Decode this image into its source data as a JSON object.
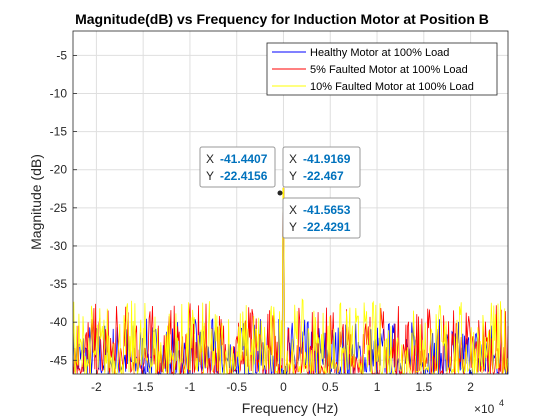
{
  "chart_data": {
    "type": "line",
    "title": "Magnitude(dB) vs Frequency for Induction Motor at Position B",
    "xlabel": "Frequency (Hz)",
    "ylabel": "Magnitude (dB)",
    "x_exponent_label": "×10",
    "x_exponent_power": "4",
    "xlim": [
      -22500,
      24000
    ],
    "ylim": [
      -46.8,
      -1.8
    ],
    "xticks": [
      -20000,
      -15000,
      -10000,
      -5000,
      0,
      5000,
      10000,
      15000,
      20000
    ],
    "xtick_labels": [
      "-2",
      "-1.5",
      "-1",
      "-0.5",
      "0",
      "0.5",
      "1",
      "1.5",
      "2"
    ],
    "yticks": [
      -45,
      -40,
      -35,
      -30,
      -25,
      -20,
      -15,
      -10,
      -5
    ],
    "ytick_labels": [
      "-45",
      "-40",
      "-35",
      "-30",
      "-25",
      "-20",
      "-15",
      "-10",
      "-5"
    ],
    "grid": true,
    "legend_position": "top-right",
    "series": [
      {
        "name": "Healthy Motor at 100% Load",
        "color": "#0000ff",
        "peak_x": -41.9169,
        "peak_y": -22.467,
        "noise_floor": [
          -46.8,
          -39.5
        ]
      },
      {
        "name": "5% Faulted Motor at 100% Load",
        "color": "#ff0000",
        "peak_x": -41.4407,
        "peak_y": -22.4156,
        "noise_floor": [
          -46.8,
          -37.5
        ]
      },
      {
        "name": "10% Faulted Motor at 100% Load",
        "color": "#ffff00",
        "peak_x": -41.5653,
        "peak_y": -22.4291,
        "noise_floor": [
          -46.8,
          -37.0
        ]
      }
    ],
    "datatips": [
      {
        "x": "-41.4407",
        "y": "-22.4156",
        "anchor": "upper-left"
      },
      {
        "x": "-41.9169",
        "y": "-22.467",
        "anchor": "upper-right"
      },
      {
        "x": "-41.5653",
        "y": "-22.4291",
        "anchor": "lower-right"
      }
    ],
    "datatip_keys": {
      "x": "X",
      "y": "Y"
    }
  }
}
